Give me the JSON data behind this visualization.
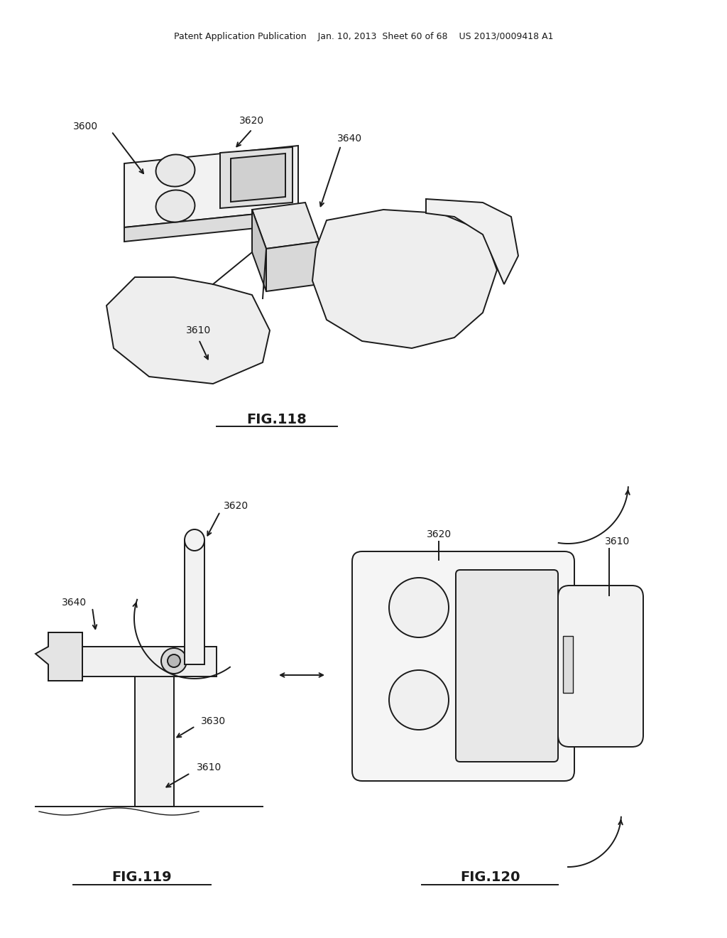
{
  "bg_color": "#ffffff",
  "line_color": "#1a1a1a",
  "header_text": "Patent Application Publication    Jan. 10, 2013  Sheet 60 of 68    US 2013/0009418 A1",
  "fig118_label": "FIG.118",
  "fig119_label": "FIG.119",
  "fig120_label": "FIG.120"
}
